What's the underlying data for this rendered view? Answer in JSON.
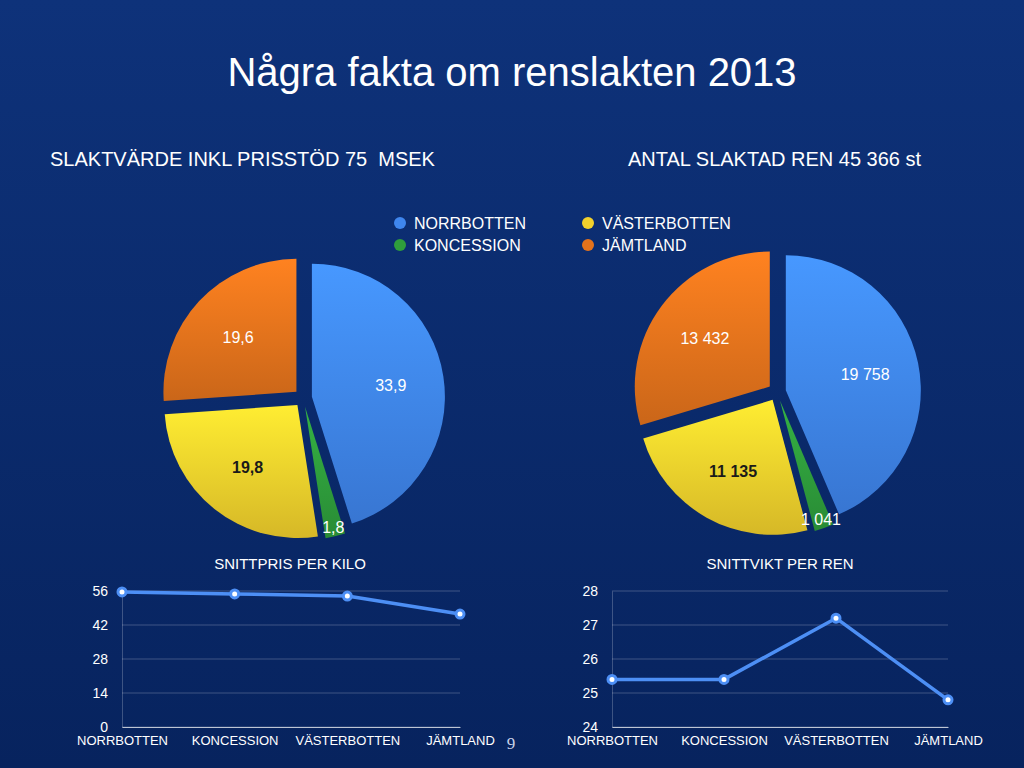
{
  "title": "Några fakta om renslakten 2013",
  "page_number": 9,
  "chart_data": [
    {
      "type": "pie",
      "title": "SLAKTVÄRDE INKL PRISSTÖD 75  MSEK",
      "categories": [
        "NORRBOTTEN",
        "KONCESSION",
        "VÄSTERBOTTEN",
        "JÄMTLAND"
      ],
      "values": [
        33.9,
        1.8,
        19.8,
        19.6
      ],
      "value_labels": [
        "33,9",
        "1,8",
        "19,8",
        "19,6"
      ],
      "colors": [
        "#3f86ee",
        "#2f9e3c",
        "#f2d12c",
        "#e5731c"
      ],
      "data_labels": true,
      "legend": "top"
    },
    {
      "type": "pie",
      "title": "ANTAL SLAKTAD REN 45 366 st",
      "values": [
        19758,
        1041,
        11135,
        13432
      ],
      "value_labels": [
        "19 758",
        "1 041",
        "11 135",
        "13 432"
      ],
      "colors": [
        "#3f86ee",
        "#2f9e3c",
        "#f2d12c",
        "#e5731c"
      ],
      "data_labels": true
    },
    {
      "type": "line",
      "title": "SNITTPRIS PER KILO",
      "categories": [
        "NORRBOTTEN",
        "KONCESSION",
        "VÄSTERBOTTEN",
        "JÄMTLAND"
      ],
      "values": [
        55.6,
        54.8,
        53.9,
        46.5
      ],
      "color": "#4d8ff5",
      "marker": "circle",
      "ylim": [
        0,
        56
      ],
      "yticks": [
        0,
        14,
        28,
        42,
        56
      ],
      "grid": true
    },
    {
      "type": "line",
      "title": "SNITTVIKT PER REN",
      "categories": [
        "NORRBOTTEN",
        "KONCESSION",
        "VÄSTERBOTTEN",
        "JÄMTLAND"
      ],
      "values": [
        25.4,
        25.4,
        27.2,
        24.8
      ],
      "color": "#4d8ff5",
      "marker": "circle",
      "ylim": [
        24,
        28
      ],
      "yticks": [
        24,
        25,
        26,
        27,
        28
      ],
      "grid": true
    }
  ]
}
